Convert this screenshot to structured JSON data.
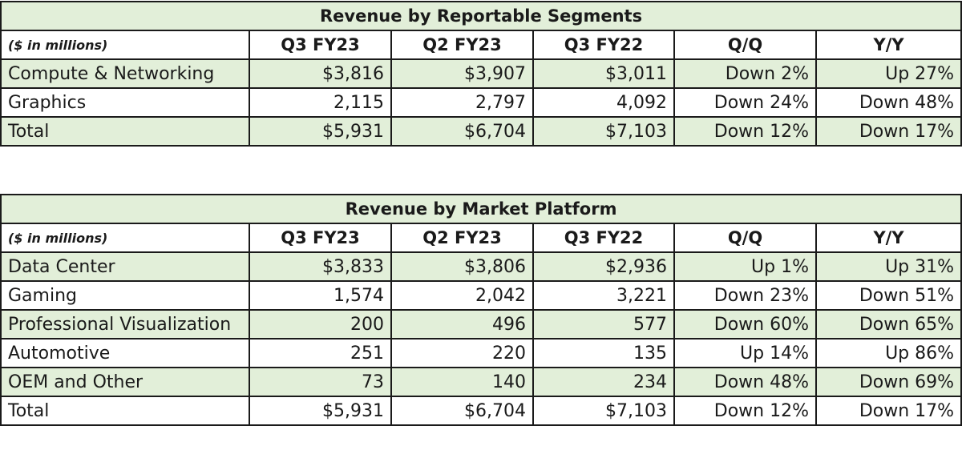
{
  "segments_table": {
    "title": "Revenue by Reportable Segments",
    "units": "($ in millions)",
    "columns": [
      "Q3 FY23",
      "Q2 FY23",
      "Q3 FY22",
      "Q/Q",
      "Y/Y"
    ],
    "rows": [
      {
        "label": "Compute & Networking",
        "values": [
          "$3,816",
          "$3,907",
          "$3,011",
          "Down 2%",
          "Up 27%"
        ]
      },
      {
        "label": "Graphics",
        "values": [
          "2,115",
          "2,797",
          "4,092",
          "Down 24%",
          "Down 48%"
        ]
      },
      {
        "label": "Total",
        "values": [
          "$5,931",
          "$6,704",
          "$7,103",
          "Down 12%",
          "Down 17%"
        ]
      }
    ]
  },
  "platform_table": {
    "title": "Revenue by Market Platform",
    "units": "($ in millions)",
    "columns": [
      "Q3 FY23",
      "Q2 FY23",
      "Q3 FY22",
      "Q/Q",
      "Y/Y"
    ],
    "rows": [
      {
        "label": "Data Center",
        "values": [
          "$3,833",
          "$3,806",
          "$2,936",
          "Up 1%",
          "Up 31%"
        ]
      },
      {
        "label": "Gaming",
        "values": [
          "1,574",
          "2,042",
          "3,221",
          "Down 23%",
          "Down 51%"
        ]
      },
      {
        "label": "Professional Visualization",
        "values": [
          "200",
          "496",
          "577",
          "Down 60%",
          "Down 65%"
        ]
      },
      {
        "label": "Automotive",
        "values": [
          "251",
          "220",
          "135",
          "Up 14%",
          "Up 86%"
        ]
      },
      {
        "label": "OEM and Other",
        "values": [
          "73",
          "140",
          "234",
          "Down 48%",
          "Down 69%"
        ]
      },
      {
        "label": "Total",
        "values": [
          "$5,931",
          "$6,704",
          "$7,103",
          "Down 12%",
          "Down 17%"
        ]
      }
    ]
  },
  "colors": {
    "row_shade": "#e2efd9",
    "border": "#1a1a1a"
  }
}
